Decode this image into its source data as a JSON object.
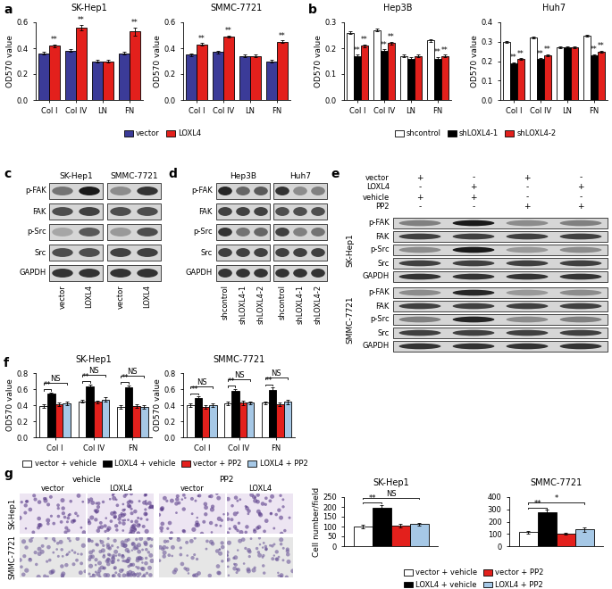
{
  "panel_labels": [
    "a",
    "b",
    "c",
    "d",
    "e",
    "f",
    "g"
  ],
  "chart_data": [
    {
      "panel": "a",
      "type": "bar",
      "title": "SK-Hep1",
      "y_label": "OD570 value",
      "categories": [
        "Col I",
        "Col IV",
        "LN",
        "FN"
      ],
      "series": [
        {
          "name": "vector",
          "color": "#3b3b98",
          "values": [
            0.36,
            0.38,
            0.3,
            0.36
          ],
          "errors": [
            0.01,
            0.01,
            0.01,
            0.01
          ]
        },
        {
          "name": "LOXL4",
          "color": "#e3201c",
          "values": [
            0.42,
            0.56,
            0.3,
            0.53
          ],
          "errors": [
            0.01,
            0.02,
            0.01,
            0.03
          ]
        }
      ],
      "ylim": [
        0,
        0.6
      ],
      "yticks": [
        {
          "value": 0,
          "label": "0.0"
        },
        0.2,
        0.4,
        0.6
      ],
      "marks": [
        {
          "series": "LOXL4",
          "category": "Col I",
          "text": "**"
        },
        {
          "series": "LOXL4",
          "category": "Col IV",
          "text": "**"
        },
        {
          "series": "LOXL4",
          "category": "FN",
          "text": "**"
        }
      ],
      "legend": "upper center"
    },
    {
      "panel": "a",
      "type": "bar",
      "title": "SMMC-7721",
      "y_label": "OD570 value",
      "categories": [
        "Col I",
        "Col IV",
        "LN",
        "FN"
      ],
      "series": [
        {
          "name": "vector",
          "color": "#3b3b98",
          "values": [
            0.35,
            0.37,
            0.34,
            0.3
          ],
          "errors": [
            0.01,
            0.01,
            0.01,
            0.01
          ]
        },
        {
          "name": "LOXL4",
          "color": "#e3201c",
          "values": [
            0.43,
            0.49,
            0.34,
            0.45
          ],
          "errors": [
            0.01,
            0.01,
            0.01,
            0.01
          ]
        }
      ],
      "ylim": [
        0,
        0.6
      ],
      "yticks": [
        {
          "value": 0,
          "label": "0.0"
        },
        0.2,
        0.4,
        0.6
      ],
      "marks": [
        {
          "series": "LOXL4",
          "category": "Col I",
          "text": "**"
        },
        {
          "series": "LOXL4",
          "category": "Col IV",
          "text": "**"
        },
        {
          "series": "LOXL4",
          "category": "FN",
          "text": "**"
        }
      ]
    },
    {
      "panel": "b",
      "type": "bar",
      "title": "Hep3B",
      "y_label": "OD570 value",
      "categories": [
        "Col I",
        "Col IV",
        "LN",
        "FN"
      ],
      "series": [
        {
          "name": "shcontrol",
          "color": "#ffffff",
          "values": [
            0.26,
            0.27,
            0.17,
            0.23
          ],
          "errors": [
            0.005,
            0.005,
            0.005,
            0.005
          ]
        },
        {
          "name": "shLOXL4-1",
          "color": "#000000",
          "values": [
            0.17,
            0.19,
            0.16,
            0.16
          ],
          "errors": [
            0.005,
            0.005,
            0.005,
            0.005
          ]
        },
        {
          "name": "shLOXL4-2",
          "color": "#e3201c",
          "values": [
            0.21,
            0.22,
            0.17,
            0.17
          ],
          "errors": [
            0.005,
            0.005,
            0.005,
            0.005
          ]
        }
      ],
      "ylim": [
        0,
        0.3
      ],
      "yticks": [
        {
          "value": 0,
          "label": "0.0"
        },
        0.1,
        0.2,
        0.3
      ],
      "marks": [
        {
          "series": "shLOXL4-1",
          "category": "Col I",
          "text": "**"
        },
        {
          "series": "shLOXL4-2",
          "category": "Col I",
          "text": "**"
        },
        {
          "series": "shLOXL4-1",
          "category": "Col IV",
          "text": "**"
        },
        {
          "series": "shLOXL4-2",
          "category": "Col IV",
          "text": "**"
        },
        {
          "series": "shLOXL4-1",
          "category": "FN",
          "text": "**"
        },
        {
          "series": "shLOXL4-2",
          "category": "FN",
          "text": "**"
        }
      ],
      "legend": "upper center"
    },
    {
      "panel": "b",
      "type": "bar",
      "title": "Huh7",
      "y_label": "OD570 value",
      "categories": [
        "Col I",
        "Col IV",
        "LN",
        "FN"
      ],
      "series": [
        {
          "name": "shcontrol",
          "color": "#ffffff",
          "values": [
            0.3,
            0.32,
            0.27,
            0.33
          ],
          "errors": [
            0.005,
            0.005,
            0.005,
            0.005
          ]
        },
        {
          "name": "shLOXL4-1",
          "color": "#000000",
          "values": [
            0.19,
            0.21,
            0.27,
            0.23
          ],
          "errors": [
            0.005,
            0.005,
            0.005,
            0.005
          ]
        },
        {
          "name": "shLOXL4-2",
          "color": "#e3201c",
          "values": [
            0.21,
            0.23,
            0.27,
            0.25
          ],
          "errors": [
            0.005,
            0.005,
            0.005,
            0.005
          ]
        }
      ],
      "ylim": [
        0,
        0.4
      ],
      "yticks": [
        {
          "value": 0,
          "label": "0.0"
        },
        0.1,
        0.2,
        0.3,
        0.4
      ],
      "marks": [
        {
          "series": "shLOXL4-1",
          "category": "Col I",
          "text": "**"
        },
        {
          "series": "shLOXL4-2",
          "category": "Col I",
          "text": "**"
        },
        {
          "series": "shLOXL4-1",
          "category": "Col IV",
          "text": "**"
        },
        {
          "series": "shLOXL4-2",
          "category": "Col IV",
          "text": "**"
        },
        {
          "series": "shLOXL4-1",
          "category": "FN",
          "text": "**"
        },
        {
          "series": "shLOXL4-2",
          "category": "FN",
          "text": "**"
        }
      ]
    },
    {
      "panel": "f",
      "type": "bar",
      "title": "SK-Hep1",
      "y_label": "OD570 value",
      "categories": [
        "Col I",
        "Col IV",
        "FN"
      ],
      "series": [
        {
          "name": "vector + vehicle",
          "color": "#ffffff",
          "values": [
            0.39,
            0.45,
            0.38
          ],
          "errors": [
            0.02,
            0.02,
            0.02
          ]
        },
        {
          "name": "LOXL4 + vehicle",
          "color": "#000000",
          "values": [
            0.54,
            0.63,
            0.62
          ],
          "errors": [
            0.02,
            0.03,
            0.03
          ]
        },
        {
          "name": "vector + PP2",
          "color": "#e3201c",
          "values": [
            0.41,
            0.44,
            0.39
          ],
          "errors": [
            0.02,
            0.02,
            0.02
          ]
        },
        {
          "name": "LOXL4 + PP2",
          "color": "#a6c8e6",
          "values": [
            0.42,
            0.47,
            0.38
          ],
          "errors": [
            0.02,
            0.03,
            0.02
          ]
        }
      ],
      "ylim": [
        0,
        0.8
      ],
      "yticks": [
        {
          "value": 0,
          "label": "0.0"
        },
        0.2,
        0.4,
        0.6,
        0.8
      ],
      "comparisons": [
        {
          "category": "Col I",
          "from": "vector + vehicle",
          "to": "LOXL4 + vehicle",
          "text": "**"
        },
        {
          "category": "Col I",
          "from": "vector + vehicle",
          "to": "LOXL4 + PP2",
          "text": "NS"
        },
        {
          "category": "Col IV",
          "from": "vector + vehicle",
          "to": "LOXL4 + vehicle",
          "text": "**"
        },
        {
          "category": "Col IV",
          "from": "vector + vehicle",
          "to": "LOXL4 + PP2",
          "text": "NS"
        },
        {
          "category": "FN",
          "from": "vector + vehicle",
          "to": "LOXL4 + vehicle",
          "text": "**"
        },
        {
          "category": "FN",
          "from": "vector + vehicle",
          "to": "LOXL4 + PP2",
          "text": "NS"
        }
      ],
      "legend": "upper center"
    },
    {
      "panel": "f",
      "type": "bar",
      "title": "SMMC-7721",
      "y_label": "OD570 value",
      "categories": [
        "Col I",
        "Col IV",
        "FN"
      ],
      "series": [
        {
          "name": "vector + vehicle",
          "color": "#ffffff",
          "values": [
            0.4,
            0.42,
            0.43
          ],
          "errors": [
            0.02,
            0.02,
            0.02
          ]
        },
        {
          "name": "LOXL4 + vehicle",
          "color": "#000000",
          "values": [
            0.49,
            0.58,
            0.59
          ],
          "errors": [
            0.02,
            0.02,
            0.03
          ]
        },
        {
          "name": "vector + PP2",
          "color": "#e3201c",
          "values": [
            0.38,
            0.43,
            0.41
          ],
          "errors": [
            0.02,
            0.03,
            0.02
          ]
        },
        {
          "name": "LOXL4 + PP2",
          "color": "#a6c8e6",
          "values": [
            0.4,
            0.43,
            0.44
          ],
          "errors": [
            0.02,
            0.02,
            0.03
          ]
        }
      ],
      "ylim": [
        0,
        0.8
      ],
      "yticks": [
        {
          "value": 0,
          "label": "0.0"
        },
        0.2,
        0.4,
        0.6,
        0.8
      ],
      "comparisons": [
        {
          "category": "Col I",
          "from": "vector + vehicle",
          "to": "LOXL4 + vehicle",
          "text": "**"
        },
        {
          "category": "Col I",
          "from": "vector + vehicle",
          "to": "LOXL4 + PP2",
          "text": "NS"
        },
        {
          "category": "Col IV",
          "from": "vector + vehicle",
          "to": "LOXL4 + vehicle",
          "text": "**"
        },
        {
          "category": "Col IV",
          "from": "vector + vehicle",
          "to": "LOXL4 + PP2",
          "text": "NS"
        },
        {
          "category": "FN",
          "from": "vector + vehicle",
          "to": "LOXL4 + vehicle",
          "text": "**"
        },
        {
          "category": "FN",
          "from": "vector + vehicle",
          "to": "LOXL4 + PP2",
          "text": "NS"
        }
      ]
    },
    {
      "panel": "g",
      "type": "bar",
      "title": "SK-Hep1",
      "y_label": "Cell number/field",
      "categories": [
        null
      ],
      "tick_labels": "y",
      "series": [
        {
          "name": "vector + vehicle",
          "color": "#ffffff",
          "values": [
            100
          ],
          "errors": [
            8
          ]
        },
        {
          "name": "LOXL4 + vehicle",
          "color": "#000000",
          "values": [
            195
          ],
          "errors": [
            15
          ]
        },
        {
          "name": "vector + PP2",
          "color": "#e3201c",
          "values": [
            105
          ],
          "errors": [
            10
          ]
        },
        {
          "name": "LOXL4 + PP2",
          "color": "#a6c8e6",
          "values": [
            112
          ],
          "errors": [
            8
          ]
        }
      ],
      "ylim": [
        0,
        250
      ],
      "yticks": [
        0,
        50,
        100,
        150,
        200,
        250
      ],
      "comparisons": [
        {
          "category": null,
          "from": "vector + vehicle",
          "to": "LOXL4 + vehicle",
          "text": "**"
        },
        {
          "category": null,
          "from": "vector + vehicle",
          "to": "LOXL4 + PP2",
          "text": "NS"
        }
      ],
      "legend": "upper center"
    },
    {
      "panel": "g",
      "type": "bar",
      "title": "SMMC-7721",
      "categories": [
        null
      ],
      "tick_labels": "y",
      "series": [
        {
          "name": "vector + vehicle",
          "color": "#ffffff",
          "values": [
            115
          ],
          "errors": [
            10
          ]
        },
        {
          "name": "LOXL4 + vehicle",
          "color": "#000000",
          "values": [
            275
          ],
          "errors": [
            20
          ]
        },
        {
          "name": "vector + PP2",
          "color": "#e3201c",
          "values": [
            100
          ],
          "errors": [
            8
          ]
        },
        {
          "name": "LOXL4 + PP2",
          "color": "#a6c8e6",
          "values": [
            135
          ],
          "errors": [
            15
          ]
        }
      ],
      "ylim": [
        0,
        400
      ],
      "yticks": [
        0,
        100,
        200,
        300,
        400
      ],
      "comparisons": [
        {
          "category": null,
          "from": "vector + vehicle",
          "to": "LOXL4 + vehicle",
          "text": "**"
        },
        {
          "category": null,
          "from": "vector + vehicle",
          "to": "LOXL4 + PP2",
          "text": "*"
        }
      ]
    }
  ],
  "blots": [
    {
      "panel": "c",
      "rows": [
        "p-FAK",
        "FAK",
        "p-Src",
        "Src",
        "GAPDH"
      ],
      "groups": [
        {
          "name": "SK-Hep1",
          "lanes": [
            "vector",
            "LOXL4"
          ],
          "intensity": [
            [
              0.55,
              0.9
            ],
            [
              0.7,
              0.75
            ],
            [
              0.35,
              0.65
            ],
            [
              0.7,
              0.7
            ],
            [
              0.8,
              0.8
            ]
          ]
        },
        {
          "name": "SMMC-7721",
          "lanes": [
            "vector",
            "LOXL4"
          ],
          "intensity": [
            [
              0.45,
              0.8
            ],
            [
              0.7,
              0.7
            ],
            [
              0.4,
              0.7
            ],
            [
              0.75,
              0.75
            ],
            [
              0.8,
              0.8
            ]
          ]
        }
      ]
    },
    {
      "panel": "d",
      "rows": [
        "p-FAK",
        "FAK",
        "p-Src",
        "Src",
        "GAPDH"
      ],
      "groups": [
        {
          "name": "Hep3B",
          "lanes": [
            "shcontrol",
            "shLOXL4-1",
            "shLOXL4-2"
          ],
          "intensity": [
            [
              0.85,
              0.6,
              0.65
            ],
            [
              0.75,
              0.75,
              0.75
            ],
            [
              0.8,
              0.55,
              0.6
            ],
            [
              0.75,
              0.75,
              0.75
            ],
            [
              0.8,
              0.8,
              0.8
            ]
          ]
        },
        {
          "name": "Huh7",
          "lanes": [
            "shcontrol",
            "shLOXL4-1",
            "shLOXL4-2"
          ],
          "intensity": [
            [
              0.8,
              0.45,
              0.5
            ],
            [
              0.7,
              0.7,
              0.7
            ],
            [
              0.75,
              0.5,
              0.55
            ],
            [
              0.75,
              0.75,
              0.75
            ],
            [
              0.8,
              0.8,
              0.8
            ]
          ]
        }
      ]
    },
    {
      "panel": "e",
      "rows": [
        "p-FAK",
        "FAK",
        "p-Src",
        "Src",
        "GAPDH"
      ],
      "conditions": [
        {
          "name": "vector",
          "signs": [
            "+",
            "-",
            "+",
            "-"
          ]
        },
        {
          "name": "LOXL4",
          "signs": [
            "-",
            "+",
            "-",
            "+"
          ]
        },
        {
          "name": "vehicle",
          "signs": [
            "+",
            "+",
            "-",
            "-"
          ]
        },
        {
          "name": "PP2",
          "signs": [
            "-",
            "-",
            "+",
            "+"
          ]
        }
      ],
      "groups": [
        {
          "name": "SK-Hep1",
          "intensity": [
            [
              0.5,
              0.9,
              0.45,
              0.5
            ],
            [
              0.75,
              0.75,
              0.75,
              0.75
            ],
            [
              0.45,
              0.9,
              0.4,
              0.45
            ],
            [
              0.75,
              0.75,
              0.75,
              0.75
            ],
            [
              0.8,
              0.8,
              0.8,
              0.8
            ]
          ]
        },
        {
          "name": "SMMC-7721",
          "intensity": [
            [
              0.45,
              0.85,
              0.4,
              0.45
            ],
            [
              0.75,
              0.75,
              0.75,
              0.75
            ],
            [
              0.5,
              0.85,
              0.45,
              0.5
            ],
            [
              0.75,
              0.75,
              0.75,
              0.75
            ],
            [
              0.8,
              0.8,
              0.8,
              0.8
            ]
          ]
        }
      ]
    }
  ],
  "images": {
    "panel": "g",
    "columns": [
      {
        "name": "vehicle",
        "lanes": [
          "vector",
          "LOXL4"
        ]
      },
      {
        "name": "PP2",
        "lanes": [
          "vector",
          "LOXL4"
        ]
      }
    ],
    "rows": [
      "SK-Hep1",
      "SMMC-7721"
    ]
  }
}
